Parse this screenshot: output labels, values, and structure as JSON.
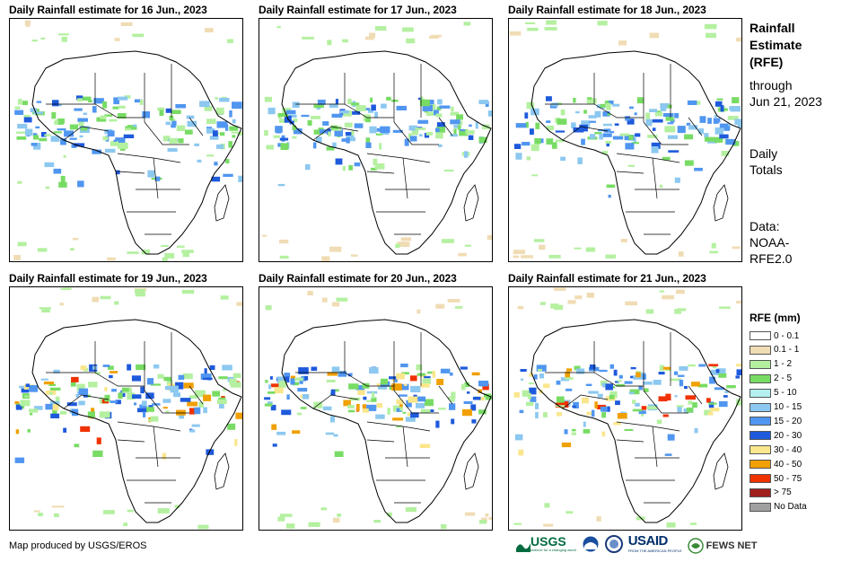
{
  "panels": [
    {
      "title": "Daily Rainfall estimate for 16 Jun., 2023"
    },
    {
      "title": "Daily Rainfall estimate for 17 Jun., 2023"
    },
    {
      "title": "Daily Rainfall estimate for 18 Jun., 2023"
    },
    {
      "title": "Daily Rainfall estimate for 19 Jun., 2023"
    },
    {
      "title": "Daily Rainfall estimate for 20 Jun., 2023"
    },
    {
      "title": "Daily Rainfall estimate for 21 Jun., 2023"
    }
  ],
  "side": {
    "title_line1": "Rainfall",
    "title_line2": "Estimate",
    "title_line3": "(RFE)",
    "through": "through",
    "date": "Jun 21, 2023",
    "totals_line1": "Daily",
    "totals_line2": "Totals",
    "data_line1": "Data:",
    "data_line2": "NOAA-",
    "data_line3": "RFE2.0"
  },
  "legend": {
    "title": "RFE (mm)",
    "items": [
      {
        "label": "0 - 0.1",
        "color": "#ffffff"
      },
      {
        "label": "0.1 - 1",
        "color": "#f0dcb4"
      },
      {
        "label": "1 - 2",
        "color": "#b4f0a0"
      },
      {
        "label": "2 - 5",
        "color": "#78dc64"
      },
      {
        "label": "5 - 10",
        "color": "#b4f0f0"
      },
      {
        "label": "10 - 15",
        "color": "#8cc8f0"
      },
      {
        "label": "15 - 20",
        "color": "#5096f0"
      },
      {
        "label": "20 - 30",
        "color": "#1e5adc"
      },
      {
        "label": "30 - 40",
        "color": "#fae68c"
      },
      {
        "label": "40 - 50",
        "color": "#f0a000"
      },
      {
        "label": "50 - 75",
        "color": "#f03200"
      },
      {
        "label": "> 75",
        "color": "#a01e1e"
      },
      {
        "label": "No Data",
        "color": "#a0a0a0"
      }
    ]
  },
  "footer": {
    "credit": "Map produced by USGS/EROS",
    "logo_usgs": "USGS",
    "logo_usgs_tagline": "science for a changing world",
    "logo_usaid": "USAID",
    "logo_usaid_tagline": "FROM THE AMERICAN PEOPLE",
    "logo_fews": "FEWS NET"
  }
}
